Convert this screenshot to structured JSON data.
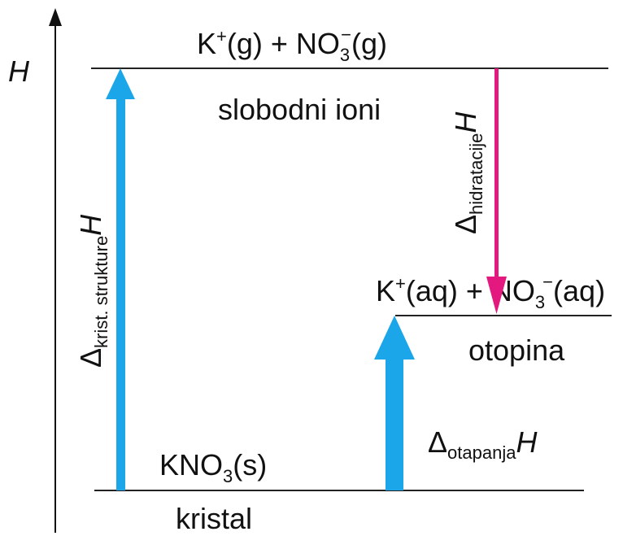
{
  "axis": {
    "label": "H"
  },
  "levels": {
    "gas": {
      "formula_k": "K",
      "k_charge": "+",
      "k_phase": "(g) + NO",
      "no3_sub": "3",
      "no3_charge": "−",
      "no3_phase": "(g)",
      "caption": "slobodni ioni"
    },
    "solution": {
      "formula_k": "K",
      "k_charge": "+",
      "k_phase": "(aq) + NO",
      "no3_sub": "3",
      "no3_charge": "−",
      "no3_phase": "(aq)",
      "caption": "otopina"
    },
    "crystal": {
      "formula": "KNO",
      "sub": "3",
      "phase": "(s)",
      "caption": "kristal"
    }
  },
  "arrows": {
    "lattice": {
      "delta": "Δ",
      "sub": "krist. strukture",
      "symbol": "H"
    },
    "hydration": {
      "delta": "Δ",
      "sub": "hidratacije",
      "symbol": "H"
    },
    "solution": {
      "delta": "Δ",
      "sub": "otapanja",
      "symbol": "H"
    }
  },
  "colors": {
    "blue_arrow": "#1aa6e8",
    "magenta_arrow": "#e4197f",
    "line": "#222222"
  }
}
